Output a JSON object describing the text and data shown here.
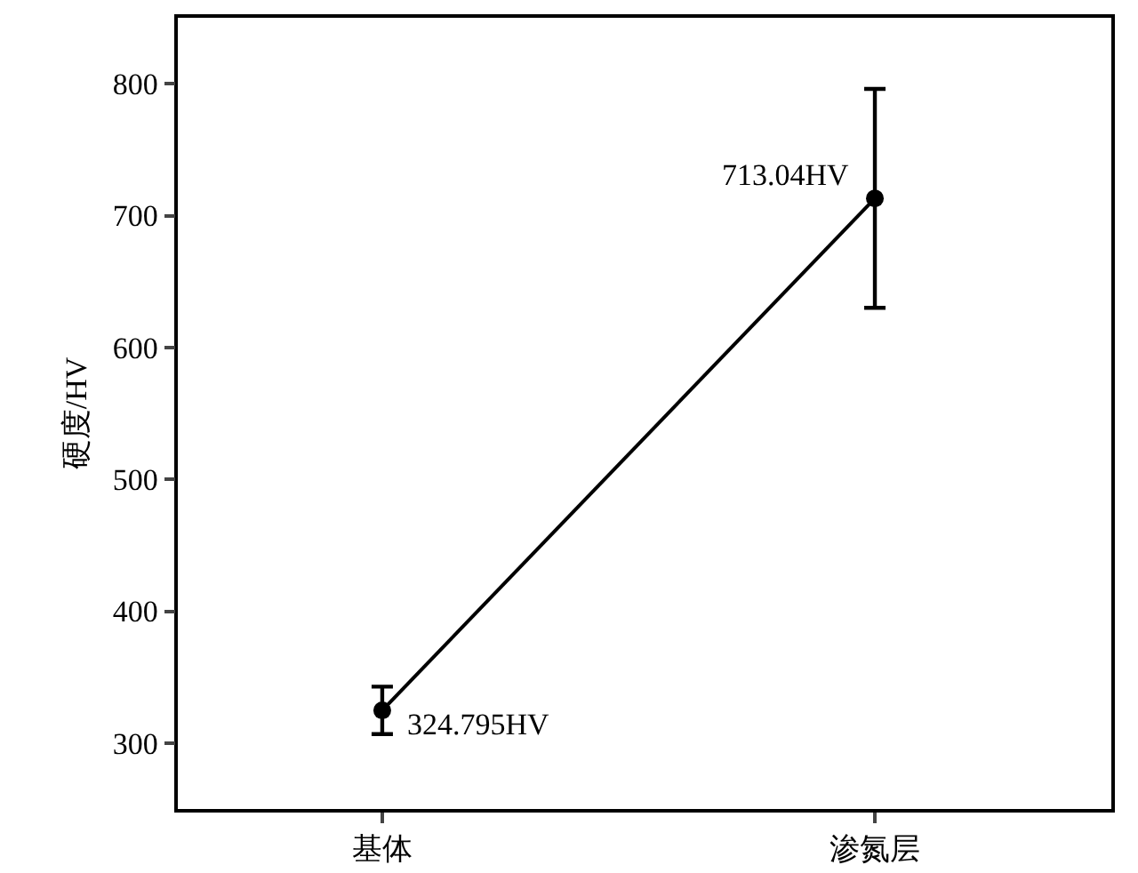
{
  "chart_data": {
    "type": "line",
    "ylabel": "硬度/HV",
    "categories": [
      "基体",
      "渗氮层"
    ],
    "series": [
      {
        "color": "#000000",
        "values": [
          324.795,
          713.04
        ],
        "errors": [
          18,
          83
        ]
      }
    ],
    "ylim": [
      250,
      850
    ],
    "yticks": [
      300,
      400,
      500,
      600,
      700,
      800
    ],
    "grid": false,
    "marker": "circle",
    "line_style": "solid",
    "annotations": [
      {
        "text": "324.795HV",
        "x": "基体",
        "y": 324.795
      },
      {
        "text": "713.04HV",
        "x": "渗氮层",
        "y": 713.04
      }
    ]
  }
}
